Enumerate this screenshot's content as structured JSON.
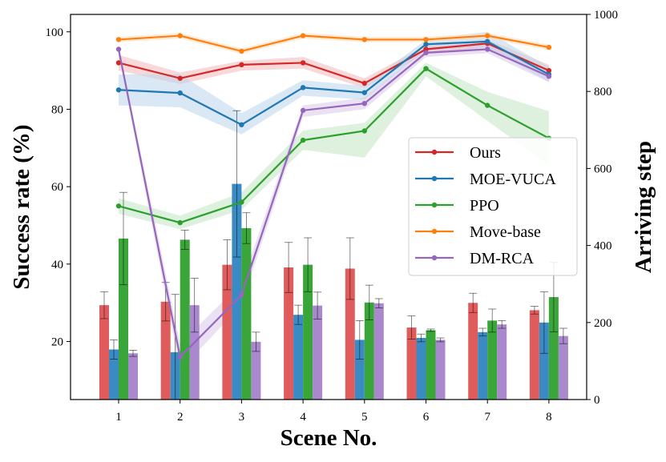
{
  "chart_data": {
    "type": "bar+line",
    "xlabel": "Scene No.",
    "ylabel_left": "Success rate (%)",
    "ylabel_right": "Arriving step",
    "categories": [
      "1",
      "2",
      "3",
      "4",
      "5",
      "6",
      "7",
      "8"
    ],
    "ylim_left": [
      5,
      104.5
    ],
    "ylim_right": [
      0,
      1000
    ],
    "yticks_left": [
      20,
      40,
      60,
      80,
      100
    ],
    "yticks_right": [
      0,
      200,
      400,
      600,
      800,
      1000
    ],
    "legend_position": "center-right",
    "lines": [
      {
        "name": "Ours",
        "color": "#d62728",
        "shade": "#f2b8b8",
        "values": [
          92,
          88,
          91.5,
          92,
          86.7,
          95.5,
          97,
          90
        ],
        "band_low": [
          90,
          86.5,
          90,
          90.5,
          85.5,
          94.5,
          96,
          88.5
        ],
        "band_high": [
          94,
          89.5,
          92.5,
          93.5,
          88,
          96.5,
          98,
          91.5
        ]
      },
      {
        "name": "MOE-VUCA",
        "color": "#1f77b4",
        "shade": "#bcd6ec",
        "values": [
          85,
          84.2,
          76,
          85.6,
          84.3,
          96.8,
          97.5,
          89
        ],
        "band_low": [
          81,
          80.5,
          73.5,
          83.5,
          82.5,
          95.5,
          96,
          87
        ],
        "band_high": [
          89,
          89,
          79,
          87.5,
          86,
          98,
          100,
          91
        ]
      },
      {
        "name": "PPO",
        "color": "#2ca02c",
        "shade": "#c2e6c2",
        "values": [
          55,
          50.7,
          56,
          72,
          74.4,
          90.5,
          81,
          72.5
        ],
        "band_low": [
          53,
          49,
          54,
          69.5,
          67.5,
          88.5,
          77,
          65.5
        ],
        "band_high": [
          57,
          52.5,
          58.5,
          74.5,
          76.5,
          92,
          84.5,
          79.5
        ]
      },
      {
        "name": "Move-base",
        "color": "#ff7f0e",
        "shade": "#fdd8b5",
        "values": [
          98,
          99,
          95,
          99,
          98,
          98,
          99,
          96
        ],
        "band_low": [
          97.3,
          98.3,
          94.3,
          98.3,
          97.3,
          97.3,
          98.3,
          95.3
        ],
        "band_high": [
          98.7,
          99.7,
          95.7,
          99.7,
          98.7,
          98.7,
          99.7,
          96.7
        ]
      },
      {
        "name": "DM-RCA",
        "color": "#9467bd",
        "shade": "#d9c8ea",
        "values": [
          95.5,
          16,
          32,
          79.7,
          81.5,
          94.6,
          95.5,
          88.5
        ],
        "band_low": [
          94.5,
          12.5,
          29.5,
          78,
          80,
          93.5,
          94.5,
          87
        ],
        "band_high": [
          96.5,
          19.5,
          35,
          81,
          83,
          95.8,
          96.8,
          90
        ]
      }
    ],
    "bars": [
      {
        "name": "Ours",
        "color": "#e05c5c",
        "axis": "right",
        "values": [
          245,
          254,
          350,
          343,
          340,
          187,
          251,
          232
        ],
        "err": [
          35,
          50,
          65,
          65,
          80,
          30,
          25,
          10
        ]
      },
      {
        "name": "MOE-VUCA",
        "color": "#3a8ac4",
        "axis": "right",
        "values": [
          130,
          123,
          560,
          220,
          155,
          160,
          175,
          200
        ],
        "err": [
          25,
          150,
          190,
          25,
          50,
          10,
          10,
          80
        ]
      },
      {
        "name": "PPO",
        "color": "#3aa63a",
        "axis": "right",
        "values": [
          418,
          415,
          445,
          350,
          252,
          180,
          205,
          266
        ],
        "err": [
          120,
          25,
          40,
          70,
          45,
          3,
          30,
          90
        ]
      },
      {
        "name": "DM-RCA",
        "color": "#a988ce",
        "axis": "right",
        "values": [
          120,
          245,
          150,
          244,
          250,
          155,
          195,
          165
        ],
        "err": [
          8,
          70,
          25,
          35,
          12,
          5,
          10,
          20
        ]
      }
    ]
  }
}
